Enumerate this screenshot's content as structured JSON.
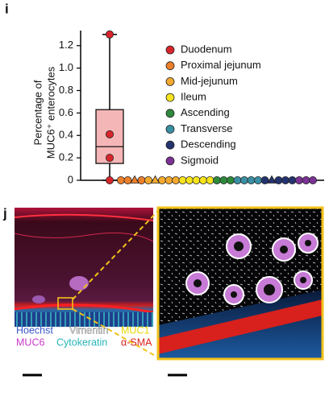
{
  "panel_labels": [
    "i",
    "j"
  ],
  "chart_data": {
    "type": "box",
    "y_label": [
      "Percentage of",
      "MUC6⁺ enterocytes"
    ],
    "ylim": [
      0,
      1.32
    ],
    "yticks": [
      0,
      0.2,
      0.4,
      0.6,
      0.8,
      {
        "value": 1,
        "label": "1.0"
      },
      1.2
    ],
    "legend": "right",
    "series": [
      {
        "name": "Duodenum",
        "color": "#d7262b",
        "values": [
          1.3,
          0.41,
          0.2,
          0
        ],
        "markers": [
          "circle",
          "circle",
          "circle",
          "circle"
        ],
        "box": {
          "whisker_low": 0,
          "q1": 0.15,
          "median": 0.3,
          "q3": 0.63,
          "whisker_high": 1.3
        }
      },
      {
        "name": "Proximal jejunum",
        "color": "#ec7f2a",
        "values": [
          0,
          0,
          0,
          0
        ],
        "markers": [
          "circle",
          "circle",
          "triangle",
          "circle"
        ]
      },
      {
        "name": "Mid-jejunum",
        "color": "#f3a92e",
        "values": [
          0,
          0,
          0,
          0,
          0
        ],
        "markers": [
          "circle",
          "triangle",
          "circle",
          "circle",
          "circle"
        ]
      },
      {
        "name": "Ileum",
        "color": "#f7e41c",
        "values": [
          0,
          0,
          0,
          0,
          0
        ],
        "markers": [
          "circle",
          "circle",
          "circle",
          "circle",
          "circle"
        ]
      },
      {
        "name": "Ascending",
        "color": "#2e8a3c",
        "values": [
          0,
          0,
          0
        ],
        "markers": [
          "circle",
          "circle",
          "circle"
        ]
      },
      {
        "name": "Transverse",
        "color": "#3a8fa3",
        "values": [
          0,
          0,
          0,
          0
        ],
        "markers": [
          "circle",
          "circle",
          "circle",
          "circle"
        ]
      },
      {
        "name": "Descending",
        "color": "#24336f",
        "values": [
          0,
          0,
          0,
          0,
          0
        ],
        "markers": [
          "circle",
          "triangle",
          "circle",
          "circle",
          "circle"
        ]
      },
      {
        "name": "Sigmoid",
        "color": "#7b3294",
        "values": [
          0,
          0,
          0
        ],
        "markers": [
          "circle",
          "circle",
          "circle"
        ]
      }
    ]
  },
  "image_labels": [
    "Hoechst",
    "Vimentin",
    "MUC1",
    "MUC6",
    "Cytokeratin",
    "α-SMA"
  ]
}
